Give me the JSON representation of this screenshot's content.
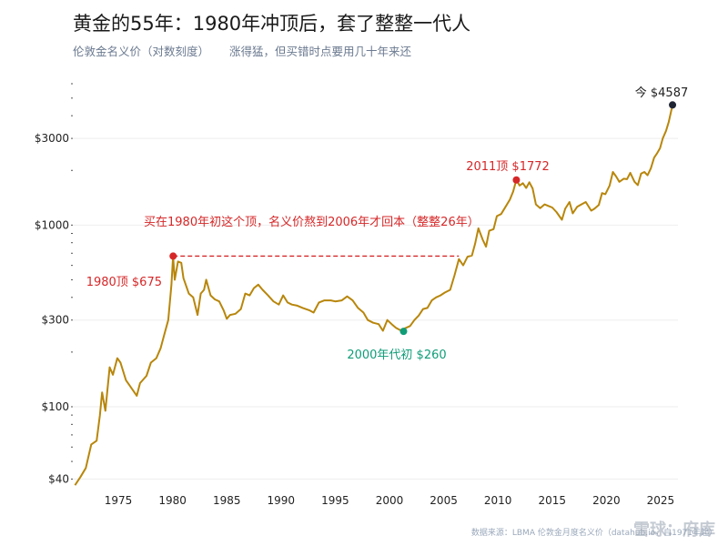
{
  "title": "黄金的55年：1980年冲顶后，套了整整一代人",
  "subtitle_left": "伦敦金名义价（对数刻度）",
  "subtitle_right": "涨得猛，但买错时点要用几十年来还",
  "footer": "数据来源：LBMA 伦敦金月度名义价（datahub.io，自1971年起）",
  "watermark": "雪球：府库",
  "colors": {
    "line": "#b8860b",
    "peak": "#d62728",
    "low": "#0f9d77",
    "latest": "#1f2433",
    "grid": "#eeeeee",
    "dash": "#d62728"
  },
  "chart_data": {
    "type": "line",
    "scale": "log",
    "ylim": [
      35,
      6000
    ],
    "xlim": [
      1970.8,
      2026.6
    ],
    "yticks": [
      {
        "value": 40,
        "label": "$40"
      },
      {
        "value": 100,
        "label": "$100"
      },
      {
        "value": 300,
        "label": "$300"
      },
      {
        "value": 1000,
        "label": "$1000"
      },
      {
        "value": 3000,
        "label": "$3000"
      }
    ],
    "xticks": [
      1975,
      1980,
      1985,
      1990,
      1995,
      2000,
      2005,
      2010,
      2015,
      2020,
      2025
    ],
    "series": [
      {
        "points": [
          [
            1971.0,
            37
          ],
          [
            1971.5,
            41
          ],
          [
            1972.0,
            46
          ],
          [
            1972.5,
            62
          ],
          [
            1973.0,
            65
          ],
          [
            1973.3,
            90
          ],
          [
            1973.5,
            120
          ],
          [
            1973.8,
            95
          ],
          [
            1974.2,
            165
          ],
          [
            1974.5,
            150
          ],
          [
            1974.9,
            185
          ],
          [
            1975.2,
            175
          ],
          [
            1975.7,
            140
          ],
          [
            1976.0,
            132
          ],
          [
            1976.7,
            115
          ],
          [
            1977.0,
            135
          ],
          [
            1977.6,
            148
          ],
          [
            1978.0,
            175
          ],
          [
            1978.5,
            185
          ],
          [
            1978.9,
            210
          ],
          [
            1979.2,
            245
          ],
          [
            1979.6,
            300
          ],
          [
            1979.9,
            470
          ],
          [
            1980.05,
            675
          ],
          [
            1980.2,
            500
          ],
          [
            1980.5,
            630
          ],
          [
            1980.8,
            620
          ],
          [
            1981.0,
            510
          ],
          [
            1981.5,
            420
          ],
          [
            1981.9,
            400
          ],
          [
            1982.3,
            320
          ],
          [
            1982.6,
            420
          ],
          [
            1982.9,
            440
          ],
          [
            1983.1,
            500
          ],
          [
            1983.5,
            410
          ],
          [
            1983.9,
            390
          ],
          [
            1984.3,
            380
          ],
          [
            1984.7,
            340
          ],
          [
            1985.0,
            305
          ],
          [
            1985.3,
            320
          ],
          [
            1985.8,
            325
          ],
          [
            1986.3,
            345
          ],
          [
            1986.7,
            420
          ],
          [
            1987.1,
            410
          ],
          [
            1987.5,
            450
          ],
          [
            1987.9,
            470
          ],
          [
            1988.3,
            440
          ],
          [
            1988.8,
            410
          ],
          [
            1989.3,
            380
          ],
          [
            1989.8,
            365
          ],
          [
            1990.2,
            410
          ],
          [
            1990.6,
            375
          ],
          [
            1991.0,
            365
          ],
          [
            1991.5,
            360
          ],
          [
            1992.0,
            350
          ],
          [
            1992.6,
            340
          ],
          [
            1993.0,
            330
          ],
          [
            1993.5,
            375
          ],
          [
            1994.0,
            385
          ],
          [
            1994.6,
            385
          ],
          [
            1995.0,
            380
          ],
          [
            1995.6,
            385
          ],
          [
            1996.1,
            405
          ],
          [
            1996.6,
            385
          ],
          [
            1997.1,
            350
          ],
          [
            1997.6,
            330
          ],
          [
            1998.0,
            300
          ],
          [
            1998.5,
            290
          ],
          [
            1999.0,
            285
          ],
          [
            1999.4,
            262
          ],
          [
            1999.8,
            300
          ],
          [
            2000.2,
            285
          ],
          [
            2000.6,
            272
          ],
          [
            2001.1,
            262
          ],
          [
            2001.4,
            270
          ],
          [
            2001.9,
            278
          ],
          [
            2002.3,
            300
          ],
          [
            2002.7,
            318
          ],
          [
            2003.1,
            345
          ],
          [
            2003.5,
            350
          ],
          [
            2003.9,
            385
          ],
          [
            2004.3,
            400
          ],
          [
            2004.7,
            410
          ],
          [
            2005.1,
            425
          ],
          [
            2005.6,
            440
          ],
          [
            2006.0,
            530
          ],
          [
            2006.4,
            650
          ],
          [
            2006.8,
            600
          ],
          [
            2007.2,
            670
          ],
          [
            2007.6,
            680
          ],
          [
            2007.9,
            790
          ],
          [
            2008.2,
            960
          ],
          [
            2008.6,
            830
          ],
          [
            2008.9,
            760
          ],
          [
            2009.2,
            930
          ],
          [
            2009.6,
            950
          ],
          [
            2009.9,
            1120
          ],
          [
            2010.3,
            1150
          ],
          [
            2010.7,
            1260
          ],
          [
            2011.1,
            1380
          ],
          [
            2011.4,
            1530
          ],
          [
            2011.7,
            1772
          ],
          [
            2012.0,
            1650
          ],
          [
            2012.3,
            1700
          ],
          [
            2012.6,
            1600
          ],
          [
            2012.9,
            1720
          ],
          [
            2013.2,
            1590
          ],
          [
            2013.5,
            1300
          ],
          [
            2013.9,
            1240
          ],
          [
            2014.3,
            1300
          ],
          [
            2014.7,
            1270
          ],
          [
            2015.0,
            1250
          ],
          [
            2015.4,
            1180
          ],
          [
            2015.9,
            1070
          ],
          [
            2016.2,
            1230
          ],
          [
            2016.6,
            1340
          ],
          [
            2016.9,
            1160
          ],
          [
            2017.3,
            1260
          ],
          [
            2017.7,
            1300
          ],
          [
            2018.1,
            1340
          ],
          [
            2018.6,
            1200
          ],
          [
            2018.9,
            1230
          ],
          [
            2019.3,
            1290
          ],
          [
            2019.6,
            1500
          ],
          [
            2019.9,
            1480
          ],
          [
            2020.3,
            1650
          ],
          [
            2020.6,
            1960
          ],
          [
            2020.9,
            1850
          ],
          [
            2021.2,
            1730
          ],
          [
            2021.6,
            1800
          ],
          [
            2021.9,
            1790
          ],
          [
            2022.2,
            1940
          ],
          [
            2022.6,
            1730
          ],
          [
            2022.9,
            1660
          ],
          [
            2023.2,
            1920
          ],
          [
            2023.5,
            1960
          ],
          [
            2023.8,
            1880
          ],
          [
            2024.1,
            2050
          ],
          [
            2024.4,
            2350
          ],
          [
            2024.7,
            2500
          ],
          [
            2024.95,
            2650
          ],
          [
            2025.2,
            3000
          ],
          [
            2025.5,
            3300
          ],
          [
            2025.75,
            3700
          ],
          [
            2026.0,
            4300
          ],
          [
            2026.15,
            4587
          ]
        ]
      }
    ],
    "annotations": [
      {
        "key": "peak1980",
        "x": 1980.05,
        "y": 675,
        "label": "1980顶 $675"
      },
      {
        "key": "low2001",
        "x": 2001.3,
        "y": 260,
        "label": "2000年代初 $260"
      },
      {
        "key": "peak2011",
        "x": 2011.7,
        "y": 1772,
        "label": "2011顶 $1772"
      },
      {
        "key": "latest",
        "x": 2026.1,
        "y": 4587,
        "label": "今 $4587"
      }
    ],
    "breakeven": {
      "x_start": 1980.05,
      "x_end": 2006.4,
      "y": 675,
      "label": "买在1980年初这个顶，名义价熬到2006年才回本（整整26年）"
    }
  }
}
